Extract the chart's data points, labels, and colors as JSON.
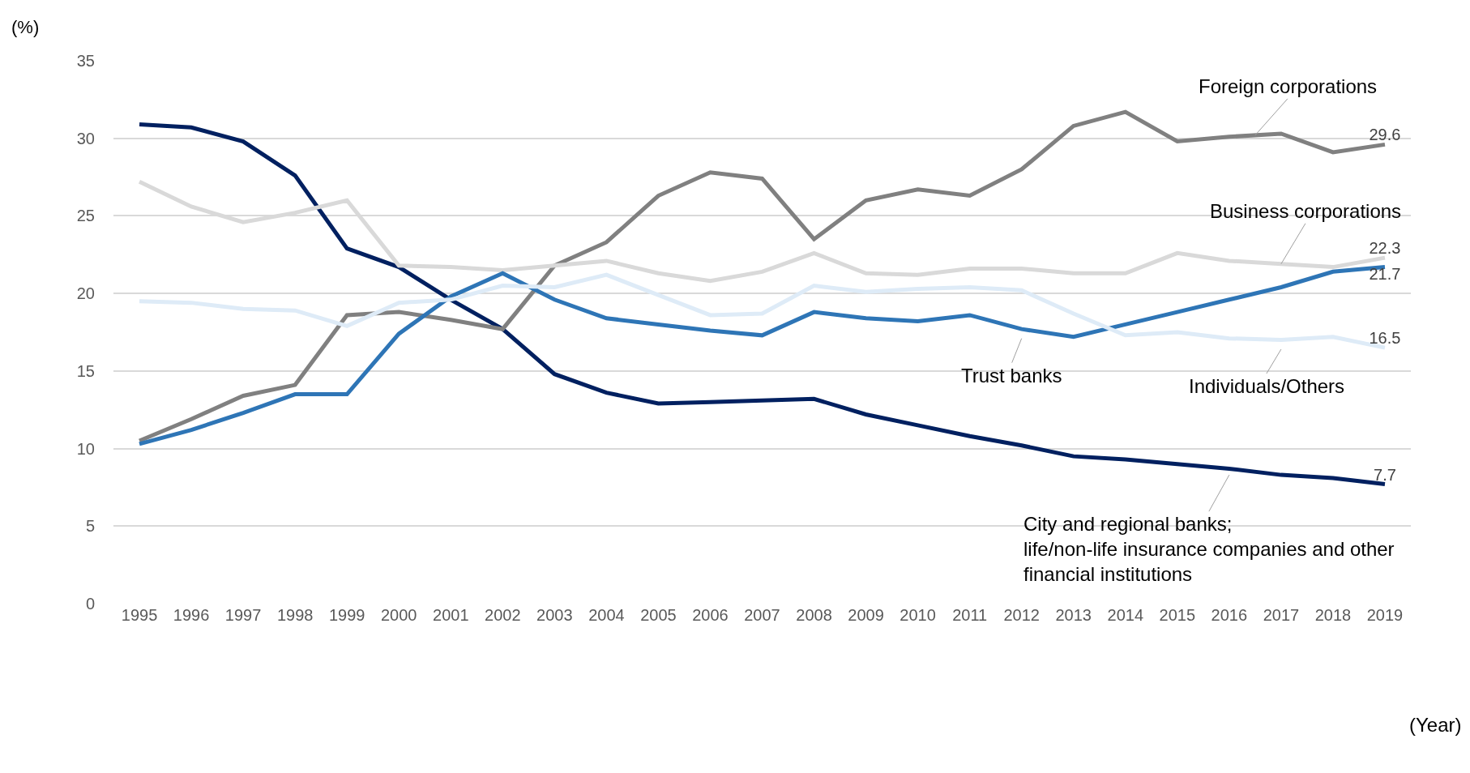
{
  "chart_data": {
    "type": "line",
    "xlabel": "(Year)",
    "ylabel": "(%)",
    "categories": [
      "1995",
      "1996",
      "1997",
      "1998",
      "1999",
      "2000",
      "2001",
      "2002",
      "2003",
      "2004",
      "2005",
      "2006",
      "2007",
      "2008",
      "2009",
      "2010",
      "2011",
      "2012",
      "2013",
      "2014",
      "2015",
      "2016",
      "2017",
      "2018",
      "2019"
    ],
    "series": [
      {
        "name": "City and regional banks;\nlife/non-life insurance companies and other\nfinancial institutions",
        "color": "#002060",
        "values": [
          30.9,
          30.7,
          29.8,
          27.6,
          22.9,
          21.7,
          19.6,
          17.7,
          14.8,
          13.6,
          12.9,
          13.0,
          13.1,
          13.2,
          12.2,
          11.5,
          10.8,
          10.2,
          9.5,
          9.3,
          9.0,
          8.7,
          8.3,
          8.1,
          7.7
        ],
        "value_labels": [
          null,
          null,
          null,
          null,
          null,
          null,
          null,
          null,
          null,
          null,
          null,
          null,
          null,
          null,
          null,
          null,
          null,
          null,
          null,
          null,
          null,
          null,
          null,
          null,
          "7.7"
        ]
      },
      {
        "name": "Foreign corporations",
        "color": "#808080",
        "values": [
          10.5,
          11.9,
          13.4,
          14.1,
          18.6,
          18.8,
          18.3,
          17.7,
          21.8,
          23.3,
          26.3,
          27.8,
          27.4,
          23.5,
          26.0,
          26.7,
          26.3,
          28.0,
          30.8,
          31.7,
          29.8,
          30.1,
          30.3,
          29.1,
          29.6
        ],
        "value_labels": [
          null,
          null,
          null,
          null,
          null,
          null,
          null,
          null,
          null,
          null,
          null,
          null,
          null,
          null,
          null,
          null,
          null,
          null,
          null,
          null,
          null,
          null,
          null,
          null,
          "29.6"
        ]
      },
      {
        "name": "Business corporations",
        "color": "#d9d9d9",
        "values": [
          27.2,
          25.6,
          24.6,
          25.2,
          26.0,
          21.8,
          21.7,
          21.5,
          21.8,
          22.1,
          21.3,
          20.8,
          21.4,
          22.6,
          21.3,
          21.2,
          21.6,
          21.6,
          21.3,
          21.3,
          22.6,
          22.1,
          21.9,
          21.7,
          22.3
        ],
        "value_labels": [
          null,
          null,
          null,
          null,
          null,
          null,
          null,
          null,
          null,
          null,
          null,
          null,
          null,
          null,
          null,
          null,
          null,
          null,
          null,
          null,
          null,
          null,
          null,
          null,
          "22.3"
        ]
      },
      {
        "name": "Trust banks",
        "color": "#2e75b6",
        "values": [
          10.3,
          11.2,
          12.3,
          13.5,
          13.5,
          17.4,
          19.8,
          21.3,
          19.6,
          18.4,
          18.0,
          17.6,
          17.3,
          18.8,
          18.4,
          18.2,
          18.6,
          17.7,
          17.2,
          18.0,
          18.8,
          19.6,
          20.4,
          21.4,
          21.7
        ],
        "value_labels": [
          null,
          null,
          null,
          null,
          null,
          null,
          null,
          null,
          null,
          null,
          null,
          null,
          null,
          null,
          null,
          null,
          null,
          null,
          null,
          null,
          null,
          null,
          null,
          null,
          "21.7"
        ]
      },
      {
        "name": "Individuals/Others",
        "color": "#deebf7",
        "values": [
          19.5,
          19.4,
          19.0,
          18.9,
          17.9,
          19.4,
          19.6,
          20.5,
          20.4,
          21.2,
          19.9,
          18.6,
          18.7,
          20.5,
          20.1,
          20.3,
          20.4,
          20.2,
          18.7,
          17.3,
          17.5,
          17.1,
          17.0,
          17.2,
          16.5
        ],
        "value_labels": [
          null,
          null,
          null,
          null,
          null,
          null,
          null,
          null,
          null,
          null,
          null,
          null,
          null,
          null,
          null,
          null,
          null,
          null,
          null,
          null,
          null,
          null,
          null,
          null,
          "16.5"
        ]
      }
    ],
    "ylim": [
      0,
      35
    ],
    "yticks": [
      0,
      5,
      10,
      15,
      20,
      25,
      30,
      35
    ],
    "grid": "y",
    "legend": false,
    "marker": "none",
    "line_style": "solid"
  }
}
